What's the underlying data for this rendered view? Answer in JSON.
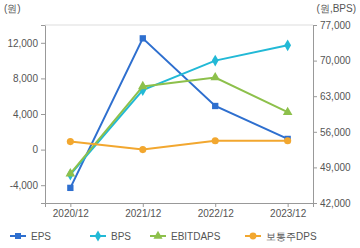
{
  "chart_data": {
    "type": "line",
    "y_label": "(원)",
    "y2_label": "(원,BPS)",
    "categories": [
      "2020/12",
      "2021/12",
      "2022/12",
      "2023/12"
    ],
    "ylim": [
      -6000,
      14000
    ],
    "yticks": [
      {
        "value": -4000,
        "label": "-4,000"
      },
      0,
      {
        "value": 4000,
        "label": "4,000"
      },
      {
        "value": 8000,
        "label": "8,000"
      },
      {
        "value": 12000,
        "label": "12,000"
      }
    ],
    "y2lim": [
      42000,
      77000
    ],
    "y2ticks": [
      {
        "value": 42000,
        "label": "42,000"
      },
      {
        "value": 49000,
        "label": "49,000"
      },
      {
        "value": 56000,
        "label": "56,000"
      },
      {
        "value": 63000,
        "label": "63,000"
      },
      {
        "value": 70000,
        "label": "70,000"
      },
      {
        "value": 77000,
        "label": "77,000"
      }
    ],
    "grid": false,
    "legend": "bottom",
    "series": [
      {
        "name": "EPS",
        "color": "#2e6fcf",
        "marker": "square",
        "values": [
          -4300,
          12500,
          4900,
          1200
        ]
      },
      {
        "name": "BPS",
        "color": "#22b9d6",
        "marker": "diamond",
        "axis": "y2",
        "values": [
          47600,
          64200,
          70000,
          73000
        ]
      },
      {
        "name": "EBITDAPS",
        "color": "#8dc04b",
        "marker": "triangle",
        "values": [
          -2700,
          7100,
          8100,
          4200
        ]
      },
      {
        "name": "보통주DPS",
        "color": "#f2a72f",
        "marker": "circle",
        "values": [
          900,
          0,
          1000,
          1000
        ]
      }
    ]
  }
}
